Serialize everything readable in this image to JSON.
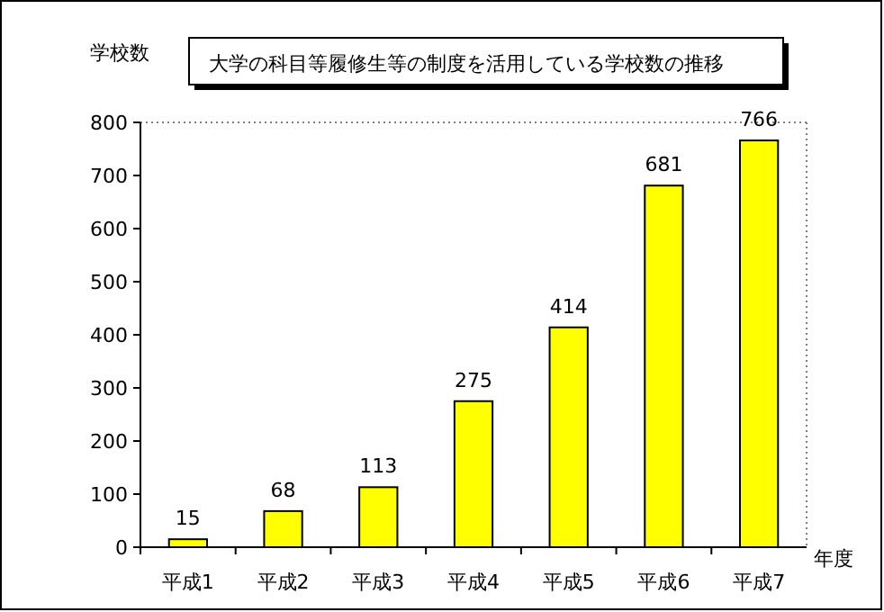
{
  "chart_data": {
    "type": "bar",
    "title": "大学の科目等履修生等の制度を活用している学校数の推移",
    "xlabel": "年度",
    "ylabel": "学校数",
    "categories": [
      "平成1",
      "平成2",
      "平成3",
      "平成4",
      "平成5",
      "平成6",
      "平成7"
    ],
    "values": [
      15,
      68,
      113,
      275,
      414,
      681,
      766
    ],
    "color": "#ffff00",
    "ylim": [
      0,
      800
    ],
    "yticks": [
      0,
      100,
      200,
      300,
      400,
      500,
      600,
      700,
      800
    ],
    "grid": false,
    "data_labels": true
  }
}
